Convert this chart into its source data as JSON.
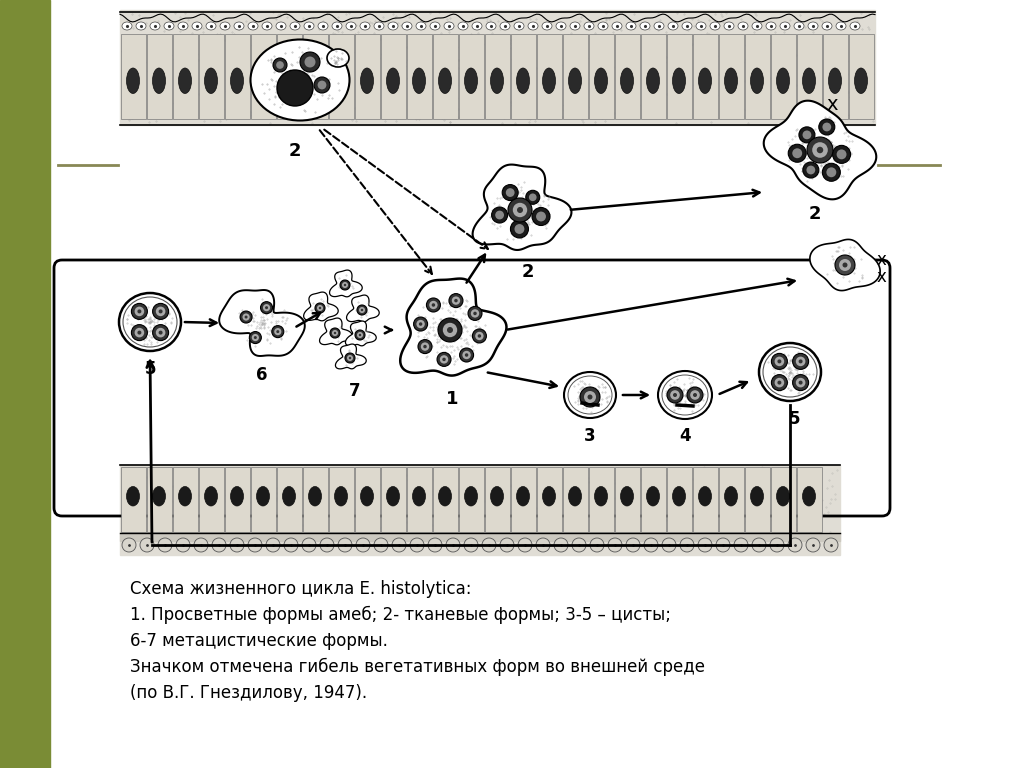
{
  "caption_line1": "Схема жизненного цикла E. histolytica:",
  "caption_line2": "1. Просветные формы амеб; 2- тканевые формы; 3-5 – цисты;",
  "caption_line3": "6-7 метацистические формы.",
  "caption_line4": "Значком отмечена гибель вегетативных форм во внешней среде",
  "caption_line5": "(по В.Г. Гнездилову, 1947).",
  "bg_color": "#ffffff",
  "olive_bar_color": "#7a8c35",
  "fig_width": 10.24,
  "fig_height": 7.68,
  "dpi": 100,
  "wall_fill": "#e8e5dc",
  "wall_dot_color": "#555555",
  "cell_edge": "#111111",
  "nucleus_dark": "#222222",
  "nucleus_mid": "#666666",
  "stipple_color": "#cccccc"
}
